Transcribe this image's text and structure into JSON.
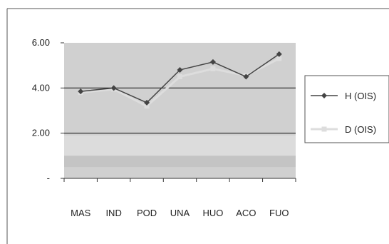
{
  "chart_data": {
    "type": "line",
    "categories": [
      "MAS",
      "IND",
      "POD",
      "UNA",
      "HUO",
      "ACO",
      "FUO"
    ],
    "series": [
      {
        "name": "H (OIS)",
        "values": [
          3.85,
          4.0,
          3.35,
          4.8,
          5.15,
          4.5,
          5.5
        ],
        "color": "#444444",
        "marker": "diamond"
      },
      {
        "name": "D (OIS)",
        "values": [
          3.8,
          3.95,
          3.2,
          4.5,
          4.85,
          4.55,
          5.3
        ],
        "color": "#dddddd",
        "marker": "square"
      }
    ],
    "y_ticks": [
      {
        "value": 6,
        "label": "6.00"
      },
      {
        "value": 4,
        "label": "4.00"
      },
      {
        "value": 2,
        "label": "2.00"
      },
      {
        "value": 0,
        "label": "-"
      }
    ],
    "ylim": [
      0,
      6
    ],
    "gridlines": [
      2,
      4
    ],
    "legend_position": "right",
    "plot_background": "#d0d0d0",
    "gridline_color": "#222222"
  }
}
